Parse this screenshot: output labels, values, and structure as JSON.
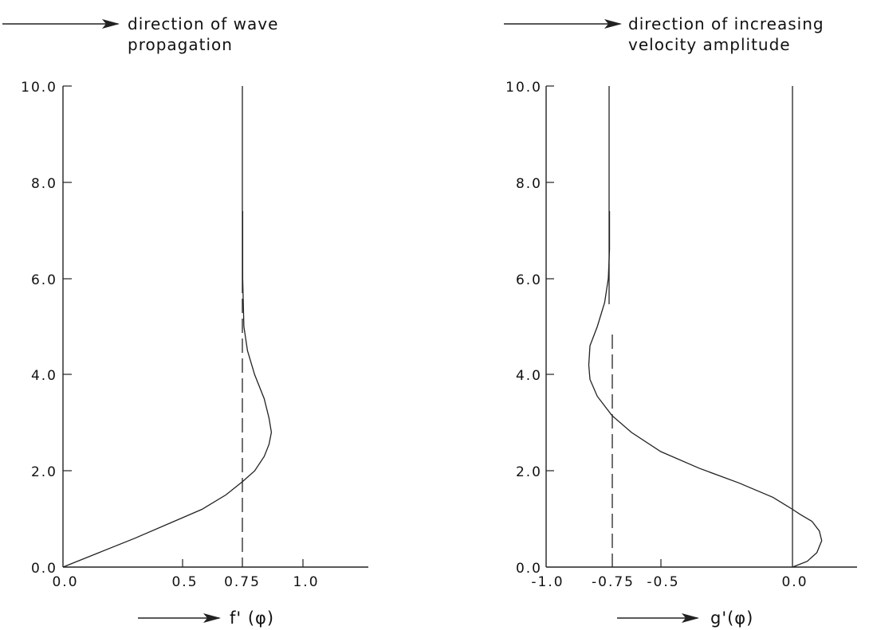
{
  "chart_data": [
    {
      "type": "line",
      "xlabel": "f' (φ)",
      "annotation": [
        "direction of wave",
        "propagation"
      ],
      "xlim": [
        0.0,
        1.3
      ],
      "ylim": [
        0.0,
        10.0
      ],
      "x_ticks": [
        0.0,
        0.5,
        0.75,
        1.0
      ],
      "x_tick_labels": [
        "0.0",
        "0.5",
        "0.75",
        "1.0"
      ],
      "y_ticks": [
        0,
        2,
        4,
        6,
        8,
        10
      ],
      "y_tick_labels": [
        "0.0",
        "2.0",
        "4.0",
        "6.0",
        "8.0",
        "10.0"
      ],
      "reference_solid_x": 0.75,
      "reference_dashed_x": 0.75,
      "series": [
        {
          "style": "solid",
          "x": [
            0.0,
            0.15,
            0.3,
            0.45,
            0.58,
            0.68,
            0.75,
            0.8,
            0.84,
            0.86,
            0.87,
            0.86,
            0.84,
            0.8,
            0.77,
            0.755,
            0.75,
            0.75
          ],
          "y": [
            0.0,
            0.3,
            0.6,
            0.92,
            1.2,
            1.5,
            1.78,
            2.0,
            2.3,
            2.55,
            2.8,
            3.1,
            3.5,
            4.0,
            4.5,
            5.0,
            6.0,
            7.4
          ]
        }
      ]
    },
    {
      "type": "line",
      "xlabel": "g'(φ)",
      "annotation": [
        "direction of increasing",
        "velocity amplitude"
      ],
      "xlim": [
        -1.0,
        0.2
      ],
      "ylim": [
        0.0,
        10.0
      ],
      "x_ticks": [
        -1.0,
        -0.75,
        -0.5,
        0.0
      ],
      "x_tick_labels": [
        "-1.0",
        "-0.75",
        "-0.5",
        "0.0"
      ],
      "y_ticks": [
        0,
        2,
        4,
        6,
        8,
        10
      ],
      "y_tick_labels": [
        "0.0",
        "2.0",
        "4.0",
        "6.0",
        "8.0",
        "10.0"
      ],
      "reference_solid_x": [
        -0.75,
        0.0
      ],
      "reference_dashed_x": -0.75,
      "series": [
        {
          "style": "solid",
          "x": [
            0.0,
            0.06,
            0.1,
            0.12,
            0.11,
            0.08,
            0.03,
            0.0,
            -0.08,
            -0.22,
            -0.38,
            -0.54,
            -0.66,
            -0.74,
            -0.8,
            -0.83,
            -0.835,
            -0.83,
            -0.8,
            -0.77,
            -0.755,
            -0.75,
            -0.75
          ],
          "y": [
            0.0,
            0.12,
            0.3,
            0.55,
            0.75,
            0.95,
            1.1,
            1.2,
            1.45,
            1.75,
            2.05,
            2.4,
            2.8,
            3.15,
            3.55,
            3.9,
            4.2,
            4.6,
            5.0,
            5.5,
            6.0,
            6.6,
            7.4
          ]
        }
      ]
    }
  ]
}
